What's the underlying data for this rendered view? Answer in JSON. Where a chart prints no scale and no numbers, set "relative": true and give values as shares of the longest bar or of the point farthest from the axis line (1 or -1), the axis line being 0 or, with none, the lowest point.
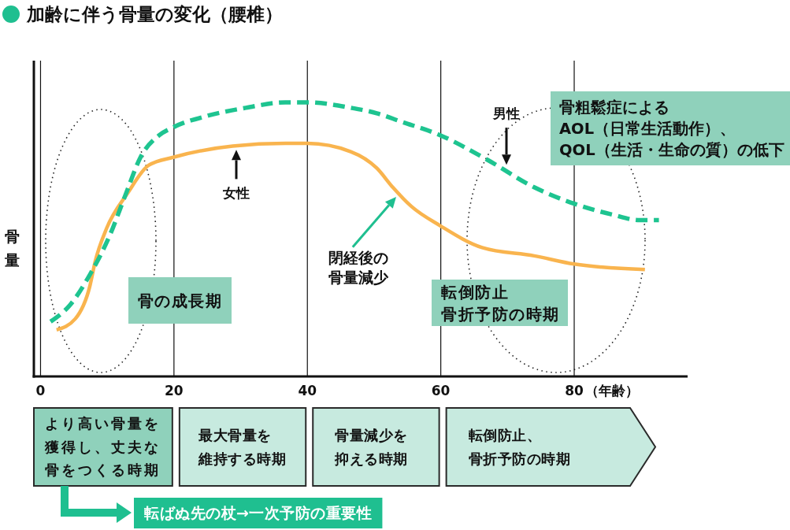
{
  "chart_data": {
    "type": "line",
    "title": "加齢に伴う骨量の変化（腰椎）",
    "xlabel": "（年齢）",
    "ylabel": "骨量",
    "relative": true,
    "xlim": [
      -1,
      97
    ],
    "xticks": [
      0,
      20,
      40,
      60,
      80
    ],
    "grid": "x",
    "series": [
      {
        "name": "女性",
        "color": "#f9b44e",
        "line_style": "solid",
        "x": [
          2.4,
          5.2,
          7.4,
          8.2,
          9.9,
          13.1,
          16.2,
          20,
          28.8,
          36.7,
          40,
          46.5,
          50.4,
          52.8,
          55.6,
          59.9,
          66.2,
          74,
          80,
          90.6
        ],
        "values": [
          0.17,
          0.21,
          0.33,
          0.42,
          0.54,
          0.67,
          0.77,
          0.8,
          0.84,
          0.85,
          0.85,
          0.82,
          0.76,
          0.69,
          0.62,
          0.55,
          0.47,
          0.44,
          0.41,
          0.39
        ]
      },
      {
        "name": "男性",
        "color": "#1ec490",
        "line_style": "dashed",
        "x": [
          1.5,
          4.4,
          7.6,
          10.3,
          12.7,
          15,
          17.8,
          20,
          24.9,
          30.8,
          36.7,
          40,
          46.5,
          50.4,
          54,
          59.9,
          67,
          74,
          80,
          85.8,
          89.8,
          92.7
        ],
        "values": [
          0.2,
          0.26,
          0.38,
          0.51,
          0.66,
          0.8,
          0.88,
          0.91,
          0.95,
          0.98,
          1,
          1,
          0.98,
          0.96,
          0.93,
          0.88,
          0.79,
          0.69,
          0.63,
          0.59,
          0.57,
          0.57
        ]
      }
    ],
    "annotations": [
      "骨粗鬆症による\nAOL（日常生活動作）、\nQOL（生活・生命の質）の低下",
      "閉経後の骨量減少",
      "骨の成長期",
      "転倒防止骨折予防の時期",
      "より高い骨量を獲得し、丈夫な骨をつくる時期",
      "最大骨量を維持する時期",
      "骨量減少を抑える時期",
      "転倒防止、骨折予防の時期",
      "転ばぬ先の杖→一次予防の重要性"
    ]
  }
}
